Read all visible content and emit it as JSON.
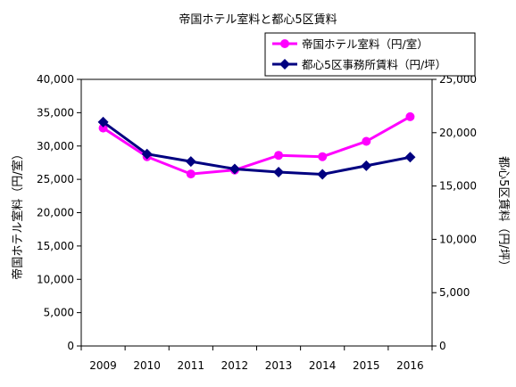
{
  "chart_data": {
    "type": "line",
    "title": "帝国ホテル室料と都心5区賃料",
    "categories": [
      "2009",
      "2010",
      "2011",
      "2012",
      "2013",
      "2014",
      "2015",
      "2016"
    ],
    "y_left": {
      "label": "帝国ホテル室料（円/室）",
      "range": [
        0,
        40000
      ],
      "ticks": [
        "0",
        "5,000",
        "10,000",
        "15,000",
        "20,000",
        "25,000",
        "30,000",
        "35,000",
        "40,000"
      ]
    },
    "y_right": {
      "label": "都心5区賃料（円/坪）",
      "range": [
        0,
        25000
      ],
      "ticks": [
        "0",
        "5,000",
        "10,000",
        "15,000",
        "20,000",
        "25,000"
      ]
    },
    "series": [
      {
        "name": "帝国ホテル室料（円/室）",
        "axis": "left",
        "color": "#ff00ff",
        "marker": "circle",
        "values": [
          32700,
          28400,
          25800,
          26400,
          28600,
          28400,
          30700,
          34400
        ]
      },
      {
        "name": "都心5区事務所賃料（円/坪）",
        "axis": "right",
        "color": "#000080",
        "marker": "diamond",
        "values": [
          21000,
          18000,
          17300,
          16600,
          16300,
          16100,
          16900,
          17700
        ]
      }
    ],
    "legend": "top-right",
    "grid": false
  }
}
